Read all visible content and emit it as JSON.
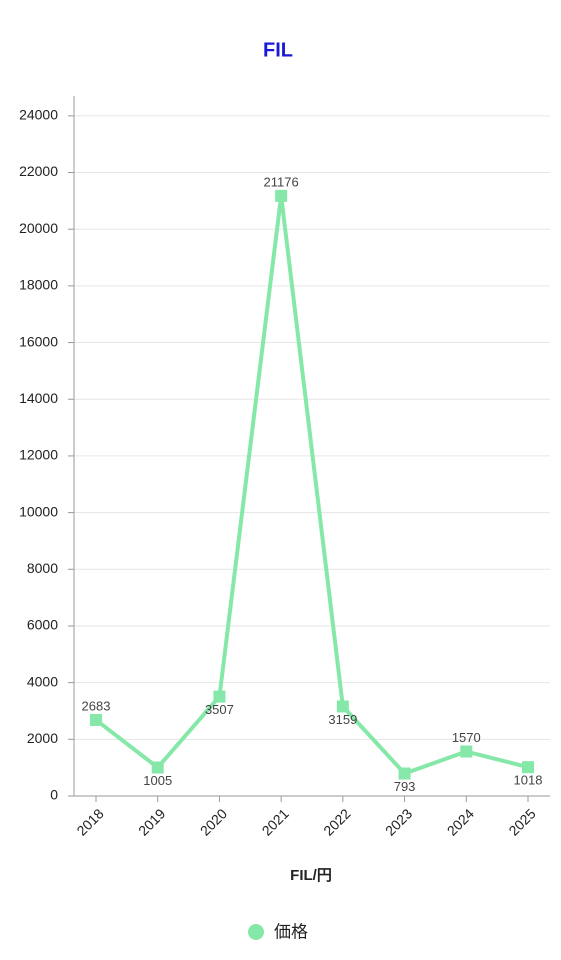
{
  "chart_data": {
    "type": "line",
    "title": "FIL",
    "x_label": "FIL/円",
    "categories": [
      "2018",
      "2019",
      "2020",
      "2021",
      "2022",
      "2023",
      "2024",
      "2025"
    ],
    "series": [
      {
        "name": "価格",
        "color": "#86e8a8",
        "values": [
          2683,
          1005,
          3507,
          21176,
          3159,
          793,
          1570,
          1018
        ]
      }
    ],
    "ylim": [
      0,
      24700
    ],
    "yticks": [
      0,
      2000,
      4000,
      6000,
      8000,
      10000,
      12000,
      14000,
      16000,
      18000,
      20000,
      22000,
      24000
    ],
    "grid": true,
    "legend": "bottom"
  }
}
